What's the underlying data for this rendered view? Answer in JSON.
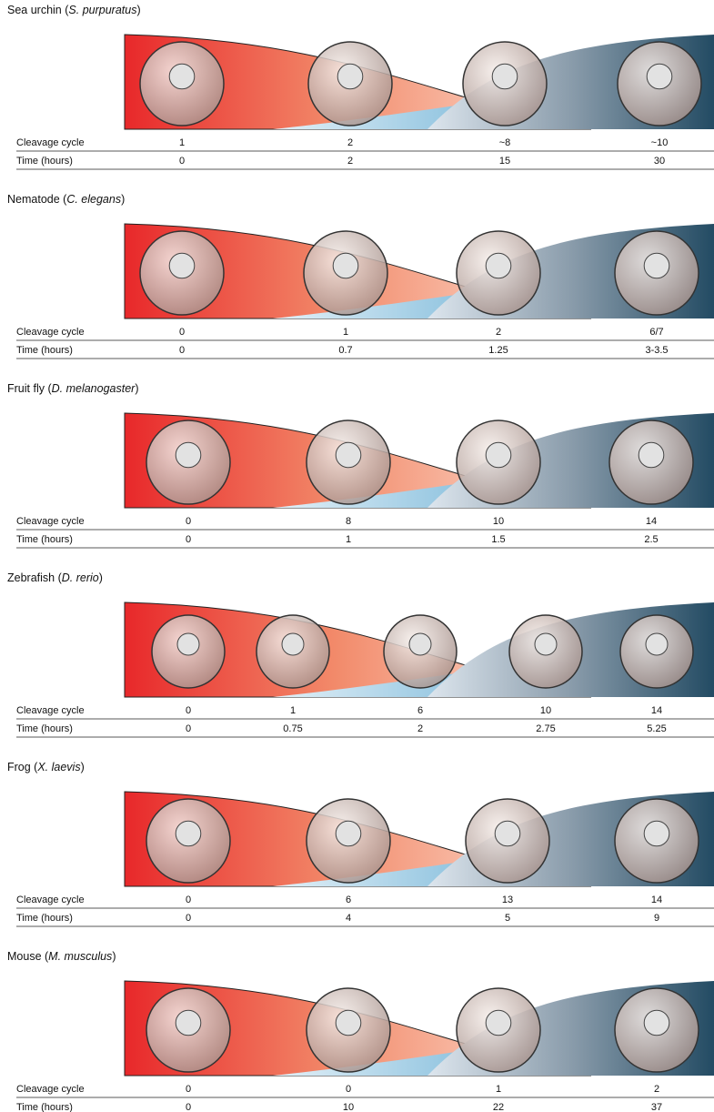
{
  "sections": [
    {
      "title": [
        "Sea urchin (",
        "S. purpuratus",
        ")"
      ],
      "rows": [
        {
          "label": "Cleavage cycle",
          "values": [
            "1",
            "2",
            "~8",
            "~10"
          ]
        },
        {
          "label": "Time (hours)",
          "values": [
            "0",
            "2",
            "15",
            "30"
          ]
        }
      ]
    },
    {
      "title": [
        "Nematode (",
        "C. elegans",
        ")"
      ],
      "rows": [
        {
          "label": "Cleavage cycle",
          "values": [
            "0",
            "1",
            "2",
            "6/7"
          ]
        },
        {
          "label": "Time (hours)",
          "values": [
            "0",
            "0.7",
            "1.25",
            "3-3.5"
          ]
        }
      ]
    },
    {
      "title": [
        "Fruit fly (",
        "D. melanogaster",
        ")"
      ],
      "rows": [
        {
          "label": "Cleavage cycle",
          "values": [
            "0",
            "8",
            "10",
            "14"
          ]
        },
        {
          "label": "Time (hours)",
          "values": [
            "0",
            "1",
            "1.5",
            "2.5"
          ]
        }
      ]
    },
    {
      "title": [
        "Zebrafish (",
        "D. rerio",
        ")"
      ],
      "rows": [
        {
          "label": "Cleavage cycle",
          "values": [
            "0",
            "1",
            "6",
            "10",
            "14"
          ]
        },
        {
          "label": "Time (hours)",
          "values": [
            "0",
            "0.75",
            "2",
            "2.75",
            "5.25"
          ]
        }
      ]
    },
    {
      "title": [
        "Frog (",
        "X. laevis",
        ")"
      ],
      "rows": [
        {
          "label": "Cleavage cycle",
          "values": [
            "0",
            "6",
            "13",
            "14"
          ]
        },
        {
          "label": "Time (hours)",
          "values": [
            "0",
            "4",
            "5",
            "9"
          ]
        }
      ]
    },
    {
      "title": [
        "Mouse (",
        "M. musculus",
        ")"
      ],
      "rows": [
        {
          "label": "Cleavage cycle",
          "values": [
            "0",
            "0",
            "1",
            "2"
          ]
        },
        {
          "label": "Time (hours)",
          "values": [
            "0",
            "10",
            "22",
            "37"
          ]
        }
      ]
    }
  ]
}
